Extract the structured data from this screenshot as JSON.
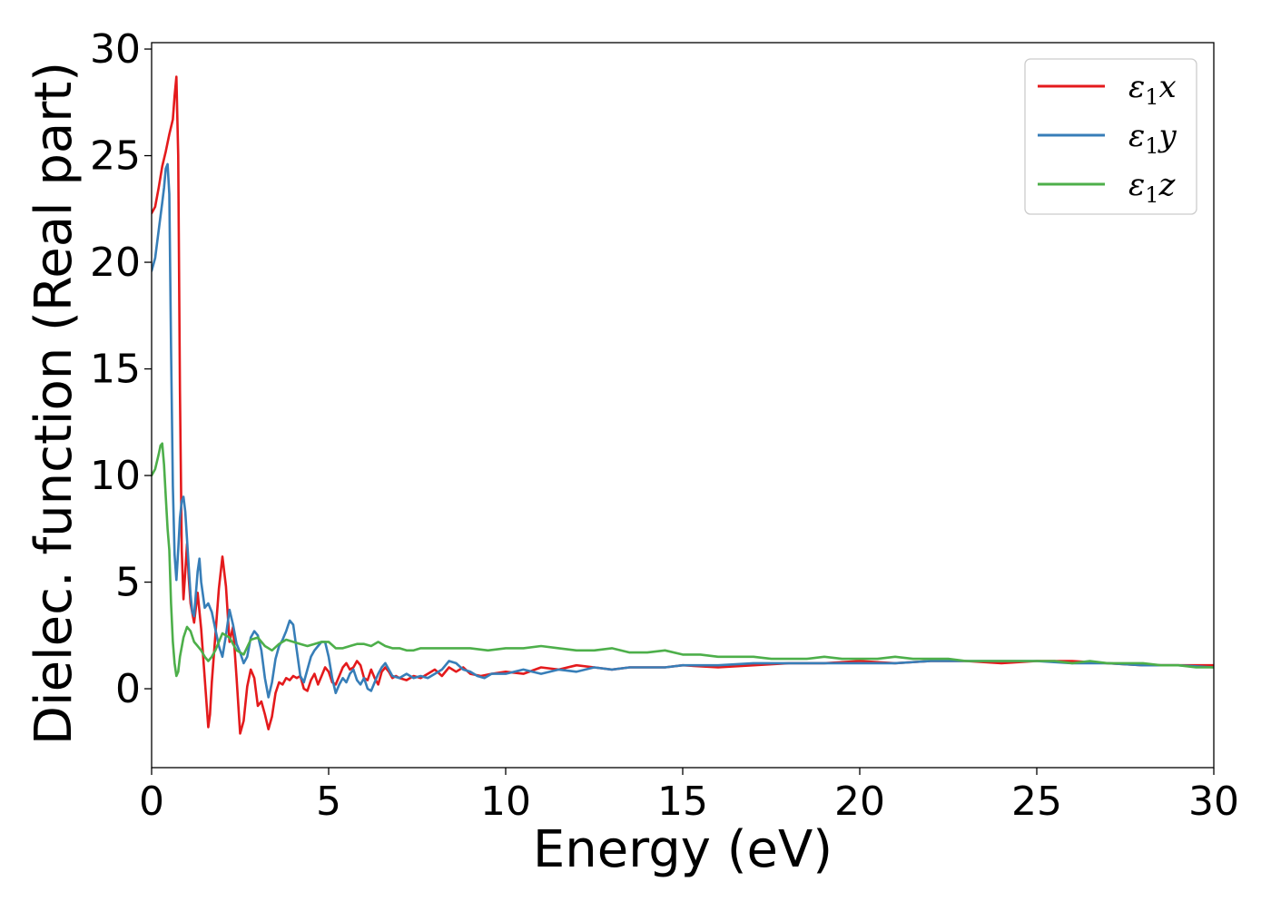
{
  "chart_data": {
    "type": "line",
    "title": "",
    "xlabel": "Energy (eV)",
    "ylabel": "Dielec. function (Real part)",
    "xlim": [
      0,
      30
    ],
    "ylim": [
      -3.7,
      30.3
    ],
    "xticks": [
      0,
      5,
      10,
      15,
      20,
      25,
      30
    ],
    "yticks": [
      0,
      5,
      10,
      15,
      20,
      25,
      30
    ],
    "grid": false,
    "legend_position": "top-right",
    "series": [
      {
        "name": "ε₁x",
        "legend_base": "ε",
        "legend_sub": "1",
        "legend_suffix": "x",
        "color": "#e41a1c",
        "x": [
          0,
          0.1,
          0.2,
          0.3,
          0.4,
          0.5,
          0.6,
          0.65,
          0.7,
          0.75,
          0.8,
          0.85,
          0.9,
          0.95,
          1.0,
          1.05,
          1.1,
          1.2,
          1.3,
          1.4,
          1.5,
          1.6,
          1.65,
          1.7,
          1.8,
          1.9,
          2.0,
          2.1,
          2.2,
          2.3,
          2.4,
          2.5,
          2.6,
          2.7,
          2.8,
          2.9,
          3.0,
          3.1,
          3.2,
          3.3,
          3.4,
          3.5,
          3.6,
          3.7,
          3.8,
          3.9,
          4.0,
          4.1,
          4.2,
          4.3,
          4.4,
          4.5,
          4.6,
          4.7,
          4.8,
          4.9,
          5.0,
          5.1,
          5.2,
          5.3,
          5.4,
          5.5,
          5.6,
          5.7,
          5.8,
          5.9,
          6.0,
          6.1,
          6.2,
          6.3,
          6.4,
          6.5,
          6.6,
          6.7,
          6.8,
          6.9,
          7.0,
          7.2,
          7.4,
          7.6,
          7.8,
          8.0,
          8.2,
          8.4,
          8.6,
          8.8,
          9.0,
          9.3,
          9.6,
          10.0,
          10.5,
          11.0,
          11.5,
          12.0,
          12.5,
          13.0,
          13.5,
          14.0,
          14.5,
          15.0,
          16.0,
          17.0,
          18.0,
          19.0,
          20.0,
          21.0,
          22.0,
          23.0,
          24.0,
          25.0,
          26.0,
          27.0,
          28.0,
          29.0,
          30.0
        ],
        "values": [
          22.3,
          22.6,
          23.5,
          24.5,
          25.2,
          26.0,
          26.7,
          27.8,
          28.7,
          25.0,
          14.0,
          6.5,
          4.2,
          5.5,
          6.8,
          5.2,
          4.0,
          3.1,
          4.5,
          2.8,
          0.5,
          -1.8,
          -1.2,
          0.3,
          2.5,
          4.7,
          6.2,
          4.8,
          2.2,
          2.9,
          0.5,
          -2.1,
          -1.5,
          0.1,
          0.9,
          0.5,
          -0.8,
          -0.6,
          -1.2,
          -1.9,
          -1.3,
          -0.2,
          0.3,
          0.2,
          0.5,
          0.4,
          0.6,
          0.5,
          0.6,
          0.0,
          -0.1,
          0.4,
          0.7,
          0.2,
          0.6,
          1.0,
          0.8,
          0.3,
          0.2,
          0.6,
          1.0,
          1.2,
          0.9,
          1.0,
          1.3,
          1.1,
          0.5,
          0.4,
          0.9,
          0.5,
          0.2,
          0.8,
          1.0,
          0.8,
          0.5,
          0.6,
          0.5,
          0.4,
          0.6,
          0.5,
          0.7,
          0.9,
          0.6,
          1.0,
          0.8,
          1.0,
          0.7,
          0.6,
          0.7,
          0.8,
          0.7,
          1.0,
          0.9,
          1.1,
          1.0,
          0.9,
          1.0,
          1.0,
          1.0,
          1.1,
          1.0,
          1.1,
          1.2,
          1.2,
          1.3,
          1.2,
          1.3,
          1.3,
          1.2,
          1.3,
          1.3,
          1.2,
          1.1,
          1.1,
          1.1
        ]
      },
      {
        "name": "ε₁y",
        "legend_base": "ε",
        "legend_sub": "1",
        "legend_suffix": "y",
        "color": "#377eb8",
        "x": [
          0,
          0.1,
          0.2,
          0.3,
          0.35,
          0.4,
          0.45,
          0.5,
          0.55,
          0.6,
          0.65,
          0.7,
          0.75,
          0.8,
          0.85,
          0.9,
          0.95,
          1.0,
          1.05,
          1.1,
          1.15,
          1.2,
          1.3,
          1.35,
          1.4,
          1.5,
          1.6,
          1.7,
          1.8,
          1.9,
          2.0,
          2.1,
          2.2,
          2.3,
          2.4,
          2.5,
          2.6,
          2.7,
          2.8,
          2.9,
          3.0,
          3.1,
          3.2,
          3.3,
          3.4,
          3.5,
          3.6,
          3.7,
          3.8,
          3.9,
          4.0,
          4.1,
          4.2,
          4.3,
          4.4,
          4.5,
          4.6,
          4.7,
          4.8,
          4.9,
          5.0,
          5.1,
          5.2,
          5.3,
          5.4,
          5.5,
          5.6,
          5.7,
          5.8,
          5.9,
          6.0,
          6.1,
          6.2,
          6.3,
          6.4,
          6.5,
          6.6,
          6.7,
          6.8,
          7.0,
          7.2,
          7.4,
          7.6,
          7.8,
          8.0,
          8.2,
          8.4,
          8.6,
          8.8,
          9.0,
          9.2,
          9.4,
          9.6,
          10.0,
          10.5,
          11.0,
          11.5,
          12.0,
          12.5,
          13.0,
          13.5,
          14.0,
          14.5,
          15.0,
          16.0,
          17.0,
          18.0,
          19.0,
          20.0,
          21.0,
          22.0,
          23.0,
          24.0,
          25.0,
          26.0,
          27.0,
          28.0,
          29.0,
          30.0
        ],
        "values": [
          19.6,
          20.2,
          21.5,
          22.8,
          23.5,
          24.4,
          24.6,
          23.2,
          16.0,
          9.5,
          6.3,
          5.1,
          6.5,
          8.0,
          8.8,
          9.0,
          8.3,
          7.0,
          5.7,
          4.4,
          3.6,
          3.4,
          5.5,
          6.1,
          5.0,
          3.8,
          4.0,
          3.6,
          2.8,
          2.0,
          1.5,
          2.5,
          3.7,
          3.0,
          2.1,
          1.7,
          1.2,
          1.5,
          2.4,
          2.7,
          2.5,
          1.8,
          0.5,
          -0.4,
          0.3,
          1.4,
          2.0,
          2.3,
          2.7,
          3.2,
          3.0,
          1.8,
          0.6,
          0.3,
          0.9,
          1.5,
          1.8,
          2.0,
          2.2,
          2.2,
          1.5,
          0.5,
          -0.2,
          0.2,
          0.5,
          0.3,
          0.7,
          0.9,
          0.4,
          0.2,
          0.5,
          0.0,
          -0.1,
          0.3,
          0.7,
          1.0,
          1.2,
          0.9,
          0.6,
          0.5,
          0.7,
          0.5,
          0.6,
          0.5,
          0.7,
          0.9,
          1.3,
          1.2,
          0.9,
          0.8,
          0.6,
          0.5,
          0.7,
          0.7,
          0.9,
          0.7,
          0.9,
          0.8,
          1.0,
          0.9,
          1.0,
          1.0,
          1.0,
          1.1,
          1.1,
          1.2,
          1.2,
          1.2,
          1.2,
          1.2,
          1.3,
          1.3,
          1.3,
          1.3,
          1.2,
          1.2,
          1.1,
          1.1,
          1.0
        ]
      },
      {
        "name": "ε₁z",
        "legend_base": "ε",
        "legend_sub": "1",
        "legend_suffix": "z",
        "color": "#4daf4a",
        "x": [
          0,
          0.1,
          0.2,
          0.25,
          0.3,
          0.35,
          0.4,
          0.45,
          0.5,
          0.55,
          0.6,
          0.65,
          0.7,
          0.75,
          0.8,
          0.9,
          1.0,
          1.1,
          1.2,
          1.3,
          1.4,
          1.5,
          1.6,
          1.7,
          1.8,
          1.9,
          2.0,
          2.2,
          2.4,
          2.6,
          2.8,
          3.0,
          3.2,
          3.4,
          3.6,
          3.8,
          4.0,
          4.2,
          4.4,
          4.6,
          4.8,
          5.0,
          5.2,
          5.4,
          5.6,
          5.8,
          6.0,
          6.2,
          6.4,
          6.6,
          6.8,
          7.0,
          7.2,
          7.4,
          7.6,
          7.8,
          8.0,
          8.5,
          9.0,
          9.5,
          10.0,
          10.5,
          11.0,
          11.5,
          12.0,
          12.5,
          13.0,
          13.5,
          14.0,
          14.5,
          15.0,
          15.5,
          16.0,
          16.5,
          17.0,
          17.5,
          18.0,
          18.5,
          19.0,
          19.5,
          20.0,
          20.5,
          21.0,
          21.5,
          22.0,
          22.5,
          23.0,
          23.5,
          24.0,
          24.5,
          25.0,
          25.5,
          26.0,
          26.5,
          27.0,
          27.5,
          28.0,
          28.5,
          29.0,
          29.5,
          30.0
        ],
        "values": [
          10.0,
          10.3,
          11.0,
          11.4,
          11.5,
          10.5,
          9.0,
          7.5,
          6.5,
          4.0,
          2.2,
          1.2,
          0.6,
          0.8,
          1.5,
          2.4,
          2.9,
          2.7,
          2.2,
          2.0,
          1.8,
          1.5,
          1.3,
          1.5,
          1.8,
          2.2,
          2.6,
          2.4,
          1.8,
          1.6,
          2.3,
          2.4,
          2.0,
          1.8,
          2.1,
          2.3,
          2.2,
          2.1,
          2.0,
          2.1,
          2.2,
          2.2,
          1.9,
          1.9,
          2.0,
          2.1,
          2.1,
          2.0,
          2.2,
          2.0,
          1.9,
          1.9,
          1.8,
          1.8,
          1.9,
          1.9,
          1.9,
          1.9,
          1.9,
          1.8,
          1.9,
          1.9,
          2.0,
          1.9,
          1.8,
          1.8,
          1.9,
          1.7,
          1.7,
          1.8,
          1.6,
          1.6,
          1.5,
          1.5,
          1.5,
          1.4,
          1.4,
          1.4,
          1.5,
          1.4,
          1.4,
          1.4,
          1.5,
          1.4,
          1.4,
          1.4,
          1.3,
          1.3,
          1.3,
          1.3,
          1.3,
          1.3,
          1.2,
          1.3,
          1.2,
          1.2,
          1.2,
          1.1,
          1.1,
          1.0,
          1.0
        ]
      }
    ]
  }
}
